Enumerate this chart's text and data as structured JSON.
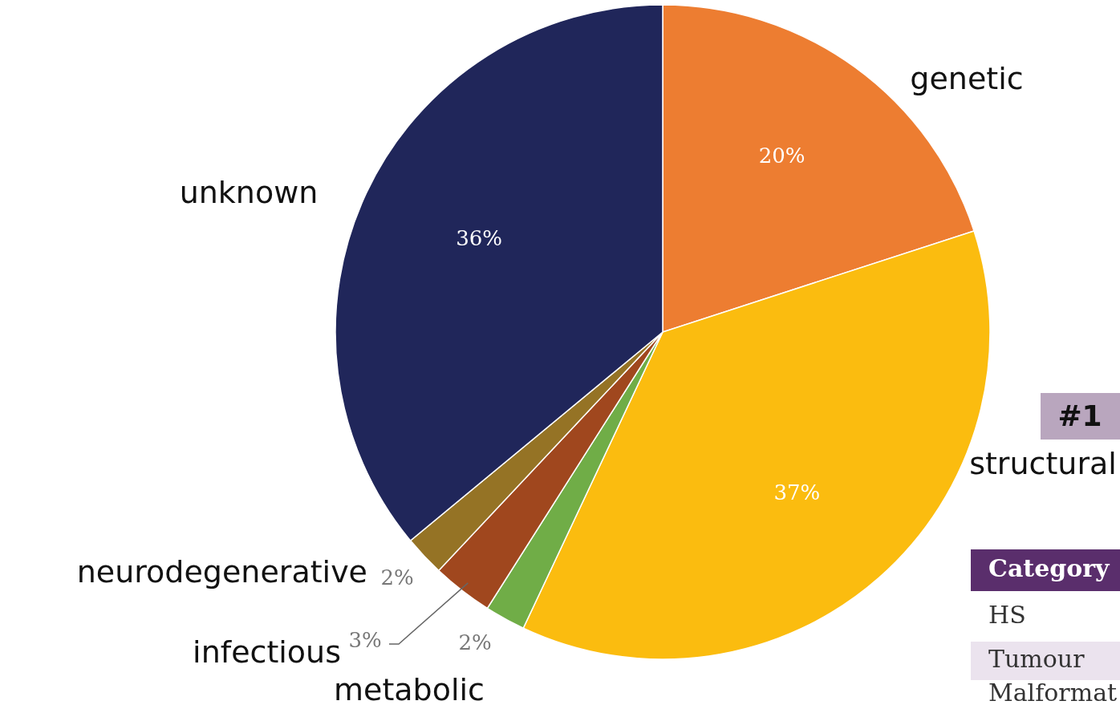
{
  "chart_data": {
    "type": "pie",
    "categories": [
      "genetic",
      "structural",
      "metabolic",
      "infectious",
      "neurodegenerative",
      "unknown"
    ],
    "values": [
      20,
      37,
      2,
      3,
      2,
      36
    ],
    "colors": [
      "#ed7d31",
      "#fbbc0f",
      "#70ad47",
      "#a0471e",
      "#957325",
      "#20265a"
    ],
    "value_labels": [
      "20%",
      "37%",
      "2%",
      "3%",
      "2%",
      "36%"
    ],
    "annotations": [
      "#1",
      "Category",
      "HS",
      "Tumour",
      "Malformat"
    ]
  }
}
